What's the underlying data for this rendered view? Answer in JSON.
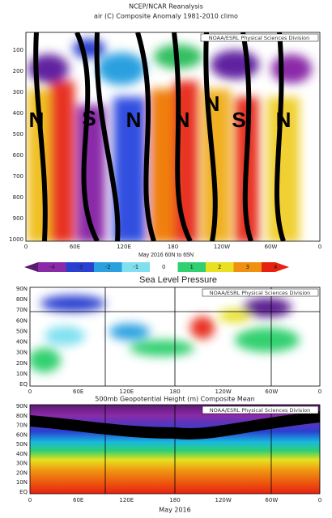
{
  "header": {
    "source": "NCEP/NCAR Reanalysis",
    "title": "air (C) Composite Anomaly 1981-2010 climo"
  },
  "panels": [
    {
      "credit": "NOAA/ESRL Physical Sciences Division",
      "yticks": [
        "100",
        "200",
        "300",
        "400",
        "500",
        "600",
        "700",
        "800",
        "900",
        "1000"
      ],
      "xticks": [
        "0",
        "60E",
        "120E",
        "180",
        "120W",
        "60W",
        "0"
      ],
      "letters": [
        "N",
        "S",
        "N",
        "N",
        "N",
        "S",
        "N"
      ],
      "caption": "May 2016 60N to 65N",
      "colorbar": [
        "-4",
        "-3",
        "-2",
        "-1",
        "0",
        "1",
        "2",
        "3",
        "4"
      ]
    },
    {
      "title": "Sea Level Pressure",
      "credit": "NOAA/ESRL Physical Sciences Division",
      "yticks": [
        "90N",
        "80N",
        "70N",
        "60N",
        "50N",
        "40N",
        "30N",
        "20N",
        "10N",
        "EQ"
      ],
      "xticks": [
        "0",
        "60E",
        "120E",
        "180",
        "120W",
        "60W",
        "0"
      ]
    },
    {
      "title": "500mb Geopotential Height (m) Composite Mean",
      "credit": "NOAA/ESRL Physical Sciences Division",
      "yticks": [
        "90N",
        "80N",
        "70N",
        "60N",
        "50N",
        "40N",
        "30N",
        "20N",
        "10N",
        "EQ"
      ],
      "xticks": [
        "0",
        "60E",
        "120E",
        "180",
        "120W",
        "60W",
        "0"
      ],
      "caption": "May 2016"
    }
  ]
}
